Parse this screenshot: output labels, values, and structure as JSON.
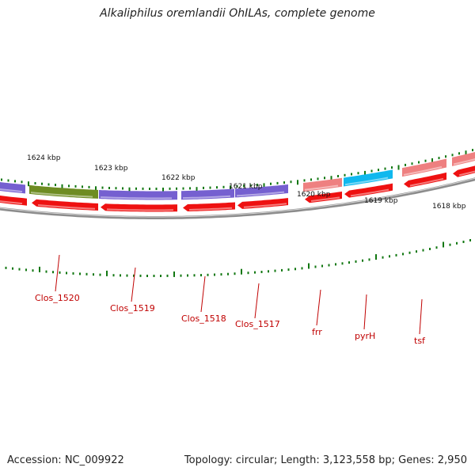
{
  "title": "Alkaliphilus oremlandii OhILAs, complete genome",
  "footer": {
    "accession": "Accession: NC_009922",
    "summary": "Topology: circular; Length: 3,123,558 bp; Genes: 2,950"
  },
  "colors": {
    "backbone": "#8c8c8c",
    "forward_cds": "#ee1111",
    "reverse_cds_purple": "#7560d0",
    "reverse_cds_olive": "#6e8c22",
    "rrna_pink": "#ee8080",
    "cyan_gene": "#10b8ee",
    "tick_green": "#117711"
  },
  "scale_labels": [
    "1624 kbp",
    "1623 kbp",
    "1622 kbp",
    "1621 kbp",
    "1620 kbp",
    "1619 kbp",
    "1618 kbp"
  ],
  "gene_labels": [
    "Clos_1520",
    "Clos_1519",
    "Clos_1518",
    "Clos_1517",
    "frr",
    "pyrH",
    "tsf"
  ]
}
